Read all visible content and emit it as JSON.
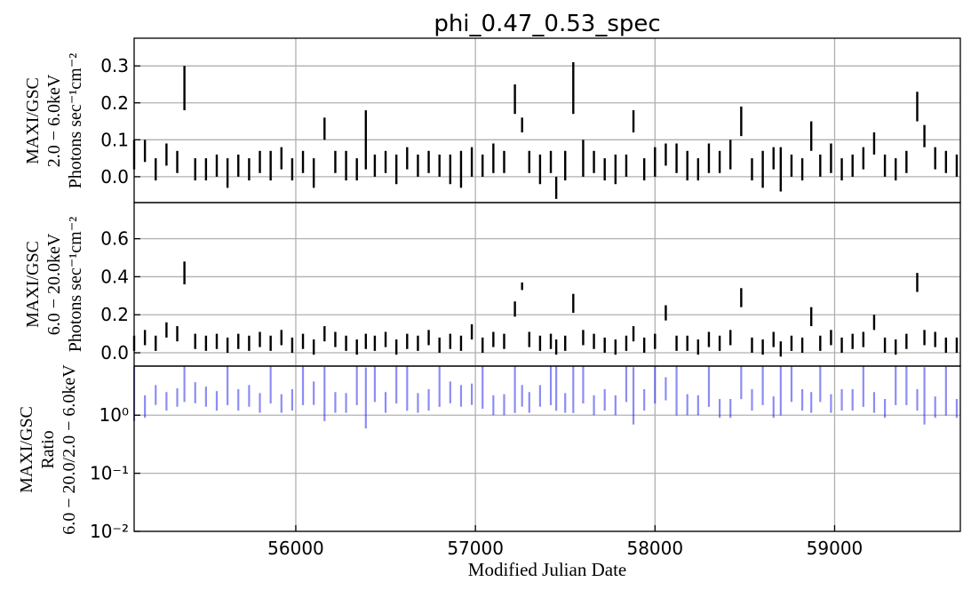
{
  "chart_data": {
    "type": "scatter",
    "title": "phi_0.47_0.53_spec",
    "xlabel": "Modified Julian Date",
    "xlim": [
      55100,
      59700
    ],
    "x_ticks": [
      "56000",
      "57000",
      "58000",
      "59000"
    ],
    "x_tick_values": [
      56000,
      57000,
      58000,
      59000
    ],
    "grid": true,
    "panels": [
      {
        "ylabel_lines": [
          "MAXI/GSC",
          "2.0 − 6.0keV",
          "Photons sec⁻¹cm⁻²"
        ],
        "yscale": "linear",
        "ylim": [
          -0.07,
          0.375
        ],
        "y_ticks": [
          "0.3",
          "0.2",
          "0.1",
          "0.0"
        ],
        "y_tick_values": [
          0.3,
          0.2,
          0.1,
          0.0
        ],
        "color": "#000000",
        "x": [
          55100,
          55160,
          55220,
          55280,
          55340,
          55380,
          55440,
          55500,
          55560,
          55620,
          55680,
          55740,
          55800,
          55860,
          55920,
          55980,
          56040,
          56100,
          56160,
          56220,
          56280,
          56340,
          56390,
          56440,
          56500,
          56560,
          56620,
          56680,
          56740,
          56800,
          56860,
          56920,
          56980,
          57040,
          57100,
          57160,
          57220,
          57260,
          57300,
          57360,
          57420,
          57450,
          57500,
          57545,
          57600,
          57660,
          57720,
          57780,
          57840,
          57880,
          57940,
          58000,
          58060,
          58120,
          58180,
          58240,
          58300,
          58360,
          58420,
          58480,
          58540,
          58600,
          58660,
          58700,
          58760,
          58820,
          58870,
          58920,
          58980,
          59040,
          59100,
          59160,
          59220,
          59280,
          59340,
          59400,
          59460,
          59500,
          59560,
          59620,
          59680
        ],
        "y": [
          0.06,
          0.07,
          0.02,
          0.06,
          0.04,
          0.24,
          0.02,
          0.02,
          0.03,
          0.01,
          0.03,
          0.02,
          0.04,
          0.03,
          0.05,
          0.02,
          0.04,
          0.01,
          0.13,
          0.04,
          0.03,
          0.02,
          0.1,
          0.03,
          0.04,
          0.02,
          0.05,
          0.03,
          0.04,
          0.03,
          0.02,
          0.02,
          0.04,
          0.03,
          0.05,
          0.04,
          0.21,
          0.14,
          0.04,
          0.02,
          0.04,
          -0.03,
          0.03,
          0.24,
          0.05,
          0.04,
          0.02,
          0.02,
          0.03,
          0.15,
          0.02,
          0.04,
          0.06,
          0.05,
          0.03,
          0.02,
          0.05,
          0.04,
          0.06,
          0.15,
          0.02,
          0.02,
          0.05,
          0.02,
          0.03,
          0.02,
          0.11,
          0.03,
          0.05,
          0.02,
          0.03,
          0.05,
          0.09,
          0.03,
          0.02,
          0.04,
          0.19,
          0.11,
          0.05,
          0.04,
          0.03
        ],
        "err": [
          0.04,
          0.03,
          0.03,
          0.03,
          0.03,
          0.06,
          0.03,
          0.03,
          0.03,
          0.04,
          0.03,
          0.03,
          0.03,
          0.04,
          0.03,
          0.03,
          0.03,
          0.04,
          0.03,
          0.03,
          0.04,
          0.03,
          0.08,
          0.03,
          0.03,
          0.04,
          0.03,
          0.03,
          0.03,
          0.03,
          0.04,
          0.05,
          0.04,
          0.03,
          0.04,
          0.03,
          0.04,
          0.02,
          0.03,
          0.04,
          0.03,
          0.03,
          0.04,
          0.07,
          0.05,
          0.03,
          0.03,
          0.04,
          0.03,
          0.03,
          0.03,
          0.04,
          0.03,
          0.04,
          0.04,
          0.03,
          0.04,
          0.03,
          0.04,
          0.04,
          0.03,
          0.05,
          0.03,
          0.06,
          0.03,
          0.03,
          0.04,
          0.03,
          0.04,
          0.03,
          0.03,
          0.03,
          0.03,
          0.03,
          0.03,
          0.03,
          0.04,
          0.03,
          0.03,
          0.03,
          0.03
        ]
      },
      {
        "ylabel_lines": [
          "MAXI/GSC",
          "6.0 − 20.0keV",
          "Photons sec⁻¹cm⁻²"
        ],
        "yscale": "linear",
        "ylim": [
          -0.07,
          0.79
        ],
        "y_ticks": [
          "0.6",
          "0.4",
          "0.2",
          "0.0"
        ],
        "y_tick_values": [
          0.6,
          0.4,
          0.2,
          0.0
        ],
        "color": "#000000",
        "x": [
          55100,
          55160,
          55220,
          55280,
          55340,
          55380,
          55440,
          55500,
          55560,
          55620,
          55680,
          55740,
          55800,
          55860,
          55920,
          55980,
          56040,
          56100,
          56160,
          56220,
          56280,
          56340,
          56390,
          56440,
          56500,
          56560,
          56620,
          56680,
          56740,
          56800,
          56860,
          56920,
          56980,
          57040,
          57100,
          57160,
          57220,
          57260,
          57300,
          57360,
          57420,
          57450,
          57500,
          57545,
          57600,
          57660,
          57720,
          57780,
          57840,
          57880,
          57940,
          58000,
          58060,
          58120,
          58180,
          58240,
          58300,
          58360,
          58420,
          58480,
          58540,
          58600,
          58660,
          58700,
          58760,
          58820,
          58870,
          58920,
          58980,
          59040,
          59100,
          59160,
          59220,
          59280,
          59340,
          59400,
          59460,
          59500,
          59560,
          59620,
          59680
        ],
        "y": [
          0.05,
          0.08,
          0.05,
          0.12,
          0.1,
          0.42,
          0.06,
          0.05,
          0.06,
          0.04,
          0.06,
          0.05,
          0.07,
          0.05,
          0.08,
          0.04,
          0.06,
          0.03,
          0.1,
          0.07,
          0.05,
          0.03,
          0.06,
          0.05,
          0.07,
          0.03,
          0.06,
          0.05,
          0.08,
          0.04,
          0.06,
          0.05,
          0.11,
          0.04,
          0.07,
          0.06,
          0.23,
          0.35,
          0.07,
          0.05,
          0.06,
          0.03,
          0.05,
          0.26,
          0.08,
          0.06,
          0.04,
          0.03,
          0.05,
          0.1,
          0.04,
          0.06,
          0.21,
          0.05,
          0.05,
          0.03,
          0.07,
          0.05,
          0.08,
          0.29,
          0.04,
          0.03,
          0.07,
          0.02,
          0.05,
          0.04,
          0.19,
          0.05,
          0.08,
          0.04,
          0.06,
          0.07,
          0.16,
          0.04,
          0.03,
          0.06,
          0.37,
          0.08,
          0.07,
          0.04,
          0.04
        ],
        "err": [
          0.04,
          0.04,
          0.04,
          0.04,
          0.04,
          0.06,
          0.04,
          0.04,
          0.04,
          0.04,
          0.04,
          0.04,
          0.04,
          0.04,
          0.04,
          0.04,
          0.04,
          0.04,
          0.04,
          0.04,
          0.04,
          0.04,
          0.04,
          0.04,
          0.04,
          0.04,
          0.04,
          0.04,
          0.04,
          0.04,
          0.04,
          0.04,
          0.04,
          0.04,
          0.04,
          0.04,
          0.04,
          0.02,
          0.04,
          0.04,
          0.04,
          0.04,
          0.04,
          0.05,
          0.04,
          0.04,
          0.04,
          0.04,
          0.04,
          0.04,
          0.04,
          0.04,
          0.04,
          0.04,
          0.04,
          0.04,
          0.04,
          0.04,
          0.04,
          0.05,
          0.04,
          0.04,
          0.04,
          0.04,
          0.04,
          0.04,
          0.05,
          0.04,
          0.04,
          0.04,
          0.04,
          0.04,
          0.04,
          0.04,
          0.04,
          0.04,
          0.05,
          0.04,
          0.04,
          0.04,
          0.04
        ]
      },
      {
        "ylabel_lines": [
          "MAXI/GSC",
          "Ratio",
          "6.0 − 20.0/2.0 − 6.0keV"
        ],
        "yscale": "log",
        "ylim": [
          0.01,
          7
        ],
        "y_ticks": [
          "10⁰",
          "10⁻¹",
          "10⁻²"
        ],
        "y_tick_values": [
          1,
          0.1,
          0.01
        ],
        "color": "#0000e6",
        "x": [
          55100,
          55160,
          55220,
          55280,
          55340,
          55380,
          55440,
          55500,
          55560,
          55620,
          55680,
          55740,
          55800,
          55860,
          55920,
          55980,
          56040,
          56100,
          56160,
          56220,
          56280,
          56340,
          56390,
          56440,
          56500,
          56560,
          56620,
          56680,
          56740,
          56800,
          56860,
          56920,
          56980,
          57040,
          57100,
          57160,
          57220,
          57260,
          57300,
          57360,
          57420,
          57450,
          57500,
          57545,
          57600,
          57660,
          57720,
          57780,
          57840,
          57880,
          57940,
          58000,
          58060,
          58120,
          58180,
          58240,
          58300,
          58360,
          58420,
          58480,
          58540,
          58600,
          58660,
          58700,
          58760,
          58820,
          58870,
          58920,
          58980,
          59040,
          59100,
          59160,
          59220,
          59280,
          59340,
          59400,
          59460,
          59500,
          59560,
          59620,
          59680
        ],
        "y": [
          0.8,
          1.2,
          2.5,
          1.8,
          2.2,
          1.7,
          2.8,
          2.3,
          1.9,
          1.5,
          2.0,
          2.4,
          1.7,
          1.6,
          1.6,
          2.0,
          1.5,
          2.8,
          0.8,
          1.8,
          1.7,
          1.5,
          0.6,
          1.7,
          1.8,
          1.6,
          1.2,
          1.7,
          2.0,
          1.4,
          2.8,
          2.4,
          2.6,
          1.3,
          1.5,
          1.6,
          1.1,
          2.4,
          1.8,
          2.4,
          1.5,
          1.2,
          1.7,
          1.1,
          1.6,
          1.5,
          2.0,
          1.5,
          1.7,
          0.7,
          2.0,
          1.6,
          3.3,
          1.0,
          1.6,
          1.5,
          1.4,
          1.3,
          1.3,
          1.9,
          2.0,
          1.5,
          1.4,
          1.0,
          1.7,
          2.0,
          1.8,
          1.7,
          1.6,
          2.0,
          2.0,
          1.4,
          1.8,
          1.3,
          1.5,
          1.5,
          2.0,
          0.7,
          1.4,
          1.0,
          1.3
        ],
        "err_lo": [
          0.01,
          0.3,
          1.0,
          0.6,
          0.8,
          0.01,
          1.2,
          0.9,
          0.7,
          0.01,
          0.8,
          1.0,
          0.6,
          0.01,
          0.5,
          0.8,
          0.01,
          1.3,
          0.01,
          0.7,
          0.6,
          0.01,
          0.01,
          0.01,
          0.7,
          0.01,
          0.01,
          0.6,
          0.8,
          0.01,
          1.2,
          1.0,
          1.1,
          0.01,
          0.5,
          0.6,
          0.01,
          1.0,
          0.7,
          1.0,
          0.01,
          0.01,
          0.6,
          0.01,
          0.01,
          0.5,
          0.8,
          0.5,
          0.01,
          0.01,
          0.8,
          0.01,
          1.5,
          0.01,
          0.6,
          0.5,
          0.01,
          0.4,
          0.4,
          0.01,
          0.8,
          0.01,
          0.5,
          0.01,
          0.01,
          0.8,
          0.7,
          0.01,
          0.5,
          0.8,
          0.8,
          0.01,
          0.7,
          0.4,
          0.01,
          0.01,
          0.8,
          0.01,
          0.5,
          0.01,
          0.4
        ],
        "err_hi": [
          6.0,
          1.0,
          0.8,
          0.7,
          0.7,
          6.0,
          0.9,
          0.8,
          0.7,
          6.0,
          0.8,
          0.9,
          0.7,
          6.0,
          0.7,
          0.8,
          6.0,
          1.0,
          6.0,
          0.7,
          0.7,
          6.0,
          6.0,
          6.0,
          0.7,
          6.0,
          6.0,
          0.7,
          0.8,
          6.0,
          1.0,
          0.9,
          0.9,
          6.0,
          0.7,
          0.7,
          6.0,
          0.9,
          0.7,
          0.9,
          6.0,
          6.0,
          0.7,
          6.0,
          6.0,
          0.7,
          0.8,
          0.7,
          6.0,
          6.0,
          0.8,
          6.0,
          1.2,
          6.0,
          0.7,
          0.7,
          6.0,
          0.6,
          0.6,
          6.0,
          0.8,
          6.0,
          0.7,
          6.0,
          6.0,
          0.8,
          0.7,
          6.0,
          0.7,
          0.8,
          0.8,
          6.0,
          0.7,
          0.6,
          6.0,
          6.0,
          0.8,
          6.0,
          0.7,
          6.0,
          0.6
        ]
      }
    ]
  }
}
